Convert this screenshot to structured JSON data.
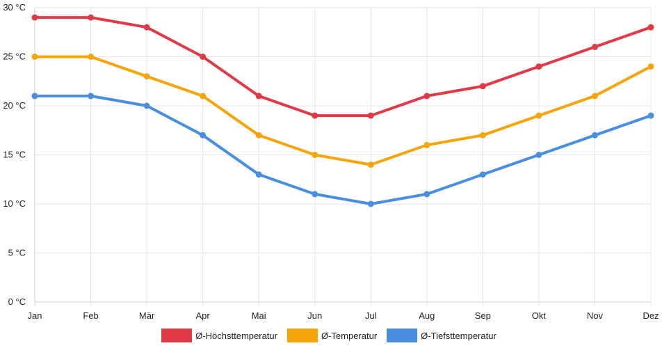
{
  "chart_data": {
    "type": "line",
    "categories": [
      "Jan",
      "Feb",
      "Mär",
      "Apr",
      "Mai",
      "Jun",
      "Jul",
      "Aug",
      "Sep",
      "Okt",
      "Nov",
      "Dez"
    ],
    "series": [
      {
        "name": "Ø-Höchsttemperatur",
        "color": "#e03a46",
        "values": [
          29,
          29,
          28,
          25,
          21,
          19,
          19,
          21,
          22,
          24,
          26,
          28
        ]
      },
      {
        "name": "Ø-Temperatur",
        "color": "#f5a50a",
        "values": [
          25,
          25,
          23,
          21,
          17,
          15,
          14,
          16,
          17,
          19,
          21,
          24
        ]
      },
      {
        "name": "Ø-Tiefsttemperatur",
        "color": "#4a8fdf",
        "values": [
          21,
          21,
          20,
          17,
          13,
          11,
          10,
          11,
          13,
          15,
          17,
          19
        ]
      }
    ],
    "y_ticks": [
      "0 °C",
      "5 °C",
      "10 °C",
      "15 °C",
      "20 °C",
      "25 °C",
      "30 °C"
    ],
    "ylim": [
      0,
      30
    ],
    "legend_position": "bottom",
    "grid": true
  }
}
